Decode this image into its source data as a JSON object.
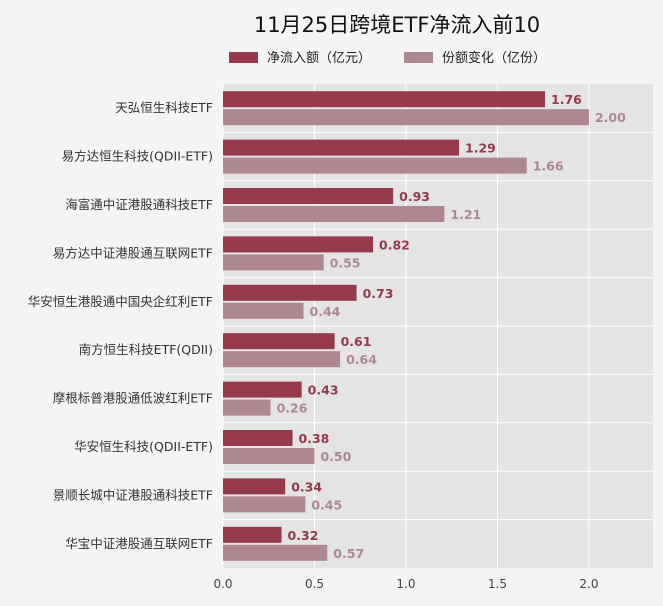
{
  "chart_data": {
    "type": "bar",
    "orientation": "horizontal",
    "title": "11月25日跨境ETF净流入前10",
    "categories": [
      "天弘恒生科技ETF",
      "易方达恒生科技(QDII-ETF)",
      "海富通中证港股通科技ETF",
      "易方达中证港股通互联网ETF",
      "华安恒生港股通中国央企红利ETF",
      "南方恒生科技ETF(QDII)",
      "摩根标普港股通低波红利ETF",
      "华安恒生科技(QDII-ETF)",
      "景顺长城中证港股通科技ETF",
      "华宝中证港股通互联网ETF"
    ],
    "series": [
      {
        "name": "净流入额（亿元）",
        "color": "#953a4a",
        "values": [
          1.76,
          1.29,
          0.93,
          0.82,
          0.73,
          0.61,
          0.43,
          0.38,
          0.34,
          0.32
        ],
        "labels": [
          "1.76",
          "1.29",
          "0.93",
          "0.82",
          "0.73",
          "0.61",
          "0.43",
          "0.38",
          "0.34",
          "0.32"
        ]
      },
      {
        "name": "份额变化（亿份）",
        "color": "#ae8790",
        "values": [
          2.0,
          1.66,
          1.21,
          0.55,
          0.44,
          0.64,
          0.26,
          0.5,
          0.45,
          0.57
        ],
        "labels": [
          "2.00",
          "1.66",
          "1.21",
          "0.55",
          "0.44",
          "0.64",
          "0.26",
          "0.50",
          "0.45",
          "0.57"
        ]
      }
    ],
    "xlim": [
      0,
      2.35
    ],
    "xticks": [
      0,
      0.5,
      1,
      1.5,
      2
    ],
    "xtick_labels": [
      "0.0",
      "0.5",
      "1.0",
      "1.5",
      "2.0"
    ],
    "grid": true,
    "legend_position": "top",
    "background_color": "#e4e4e4"
  }
}
